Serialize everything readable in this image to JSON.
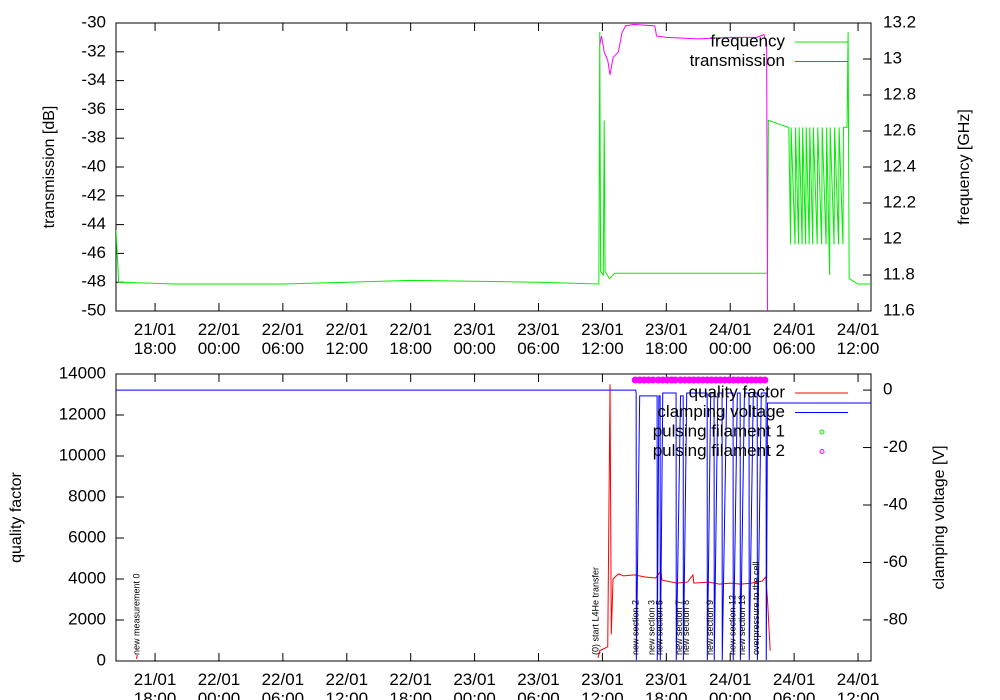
{
  "chart_data": [
    {
      "type": "line",
      "ylabel": "transmission [dB]",
      "y2label": "frequency [GHz]",
      "xlim": [
        "21/01 14:20",
        "24/01 13:13"
      ],
      "xticks": [
        "21/01 18:00",
        "22/01 00:00",
        "22/01 06:00",
        "22/01 12:00",
        "22/01 18:00",
        "23/01 00:00",
        "23/01 06:00",
        "23/01 12:00",
        "23/01 18:00",
        "24/01 00:00",
        "24/01 06:00",
        "24/01 12:00"
      ],
      "ylim": [
        -50,
        -30
      ],
      "yticks": [
        -50,
        -48,
        -46,
        -44,
        -42,
        -40,
        -38,
        -36,
        -34,
        -32,
        -30
      ],
      "y2lim": [
        11.6,
        13.2
      ],
      "y2ticks": [
        11.6,
        11.8,
        12,
        12.2,
        12.4,
        12.6,
        12.8,
        13,
        13.2
      ],
      "legend": "top-right",
      "series": [
        {
          "name": "frequency",
          "color": "#00ee00",
          "axis": "y2",
          "x": [
            "21/01 14:20",
            "21/01 14:35",
            "21/01 20:00",
            "22/01 06:00",
            "22/01 12:00",
            "22/01 18:00",
            "23/01 06:00",
            "23/01 11:40",
            "23/01 11:45",
            "23/01 11:50",
            "23/01 12:05",
            "23/01 12:10",
            "23/01 12:15",
            "23/01 12:40",
            "23/01 13:10",
            "24/01 03:30",
            "24/01 03:35",
            "24/01 04:30",
            "24/01 05:30",
            "24/01 05:40",
            "24/01 05:43",
            "24/01 06:05",
            "24/01 06:08",
            "24/01 06:25",
            "24/01 06:28",
            "24/01 06:45",
            "24/01 06:48",
            "24/01 07:05",
            "24/01 07:08",
            "24/01 07:25",
            "24/01 07:28",
            "24/01 07:45",
            "24/01 07:48",
            "24/01 08:10",
            "24/01 08:13",
            "24/01 08:35",
            "24/01 08:38",
            "24/01 09:00",
            "24/01 09:03",
            "24/01 09:20",
            "24/01 09:23",
            "24/01 09:45",
            "24/01 09:48",
            "24/01 10:10",
            "24/01 10:13",
            "24/01 10:35",
            "24/01 10:38",
            "24/01 10:58",
            "24/01 11:04",
            "24/01 11:10",
            "24/01 12:00",
            "24/01 13:13"
          ],
          "values": [
            12.05,
            11.76,
            11.75,
            11.75,
            11.76,
            11.77,
            11.76,
            11.75,
            13.15,
            11.82,
            11.8,
            12.66,
            11.82,
            11.78,
            11.81,
            11.81,
            12.66,
            12.64,
            12.62,
            11.97,
            12.62,
            11.97,
            12.62,
            11.97,
            12.62,
            11.97,
            12.62,
            11.97,
            12.62,
            11.97,
            12.62,
            11.97,
            12.62,
            11.97,
            12.62,
            11.97,
            12.62,
            11.97,
            12.62,
            11.8,
            12.62,
            11.97,
            12.62,
            11.97,
            12.62,
            11.97,
            12.62,
            12.62,
            13.15,
            11.78,
            11.75,
            11.75
          ]
        },
        {
          "name": "transmission",
          "color": "#ff00ff",
          "axis": "y",
          "x": [
            "23/01 11:45",
            "23/01 11:55",
            "23/01 12:10",
            "23/01 12:30",
            "23/01 12:43",
            "23/01 13:00",
            "23/01 13:30",
            "23/01 13:50",
            "23/01 14:10",
            "23/01 15:00",
            "23/01 16:55",
            "23/01 17:05",
            "23/01 18:00",
            "23/01 21:00",
            "24/01 00:00",
            "24/01 02:30",
            "24/01 03:10",
            "24/01 03:25",
            "24/01 03:30"
          ],
          "values": [
            -31.5,
            -30.9,
            -32,
            -32.6,
            -33.6,
            -32.4,
            -32,
            -30.7,
            -30.2,
            -30.1,
            -30.2,
            -30.9,
            -31,
            -31.1,
            -31,
            -31,
            -30.8,
            -31.4,
            -50
          ]
        }
      ]
    },
    {
      "type": "line",
      "ylabel": "quality factor",
      "y2label": "clamping voltage [V]",
      "xlim": [
        "21/01 14:20",
        "24/01 13:13"
      ],
      "xticks": [
        "21/01 18:00",
        "22/01 00:00",
        "22/01 06:00",
        "22/01 12:00",
        "22/01 18:00",
        "23/01 00:00",
        "23/01 06:00",
        "23/01 12:00",
        "23/01 18:00",
        "24/01 00:00",
        "24/01 06:00",
        "24/01 12:00"
      ],
      "ylim": [
        0,
        14000
      ],
      "yticks": [
        0,
        2000,
        4000,
        6000,
        8000,
        10000,
        12000,
        14000
      ],
      "y2lim": [
        -94.3,
        5.6
      ],
      "y2ticks": [
        -80,
        -60,
        -40,
        -20,
        0
      ],
      "legend": "top-right",
      "series": [
        {
          "name": "quality factor",
          "color": "#ff0000",
          "axis": "y",
          "x": [
            "21/01 16:15",
            "21/01 16:20",
            "21/01 16:25",
            "23/01 11:35",
            "23/01 11:45",
            "23/01 12:30",
            "23/01 12:43",
            "23/01 12:50",
            "23/01 13:00",
            "23/01 13:30",
            "23/01 14:00",
            "23/01 15:00",
            "23/01 16:00",
            "23/01 17:00",
            "23/01 17:30",
            "23/01 17:35",
            "23/01 18:00",
            "23/01 19:00",
            "23/01 20:00",
            "23/01 20:30",
            "23/01 20:35",
            "23/01 22:00",
            "23/01 23:00",
            "24/01 00:00",
            "24/01 01:00",
            "24/01 02:00",
            "24/01 03:00",
            "24/01 03:20",
            "24/01 03:30",
            "24/01 03:45"
          ],
          "values": [
            100,
            300,
            null,
            150,
            500,
            700,
            13500,
            1300,
            4000,
            4250,
            4150,
            4200,
            4100,
            4050,
            4400,
            3950,
            3900,
            3800,
            3850,
            4200,
            3800,
            3850,
            3750,
            3800,
            3750,
            3800,
            3900,
            4100,
            3000,
            500
          ]
        },
        {
          "name": "clamping voltage",
          "color": "#0000ff",
          "axis": "y2",
          "x": [
            "21/01 14:20",
            "23/01 15:08",
            "23/01 15:10",
            "23/01 15:11",
            "23/01 15:30",
            "23/01 17:08",
            "23/01 17:09",
            "23/01 17:18",
            "23/01 17:25",
            "23/01 17:26",
            "23/01 17:40",
            "23/01 18:55",
            "23/01 18:56",
            "23/01 19:20",
            "23/01 19:35",
            "23/01 19:36",
            "23/01 19:55",
            "23/01 21:50",
            "23/01 21:51",
            "23/01 22:10",
            "23/01 22:29",
            "23/01 22:30",
            "23/01 22:50",
            "23/01 23:14",
            "23/01 23:15",
            "23/01 23:40",
            "24/01 00:16",
            "24/01 00:17",
            "24/01 00:40",
            "24/01 00:56",
            "24/01 00:57",
            "24/01 01:20",
            "24/01 01:46",
            "24/01 01:47",
            "24/01 02:10",
            "24/01 02:32",
            "24/01 02:33",
            "24/01 02:55",
            "24/01 03:22",
            "24/01 03:23",
            "24/01 03:30",
            "24/01 13:13"
          ],
          "values": [
            0,
            0,
            -1,
            -94,
            -2,
            -2,
            -94,
            -2,
            -2,
            -94,
            -1,
            -1,
            -94,
            -2,
            -2,
            -94,
            -1,
            -1,
            -94,
            -1,
            -1,
            -94,
            -1,
            -1,
            -94,
            -1,
            -1,
            -94,
            -1,
            -1,
            -94,
            -1,
            -1,
            -94,
            -1,
            -1,
            -94,
            -1,
            -1,
            -94,
            -4.5,
            -4.5
          ]
        },
        {
          "name": "pulsing filament 1",
          "color": "#00ee00",
          "axis": "y2",
          "type": "scatter",
          "x": [],
          "values": []
        },
        {
          "name": "pulsing filament 2",
          "color": "#ff00ff",
          "axis": "y2",
          "type": "scatter",
          "x": [
            "23/01 15:05",
            "23/01 15:30",
            "23/01 15:55",
            "23/01 16:20",
            "23/01 16:45",
            "23/01 17:15",
            "23/01 17:40",
            "23/01 18:05",
            "23/01 18:30",
            "23/01 18:50",
            "23/01 19:20",
            "23/01 19:45",
            "23/01 20:10",
            "23/01 20:35",
            "23/01 21:00",
            "23/01 21:25",
            "23/01 21:50",
            "23/01 22:15",
            "23/01 22:40",
            "23/01 23:05",
            "23/01 23:30",
            "23/01 23:55",
            "24/01 00:20",
            "24/01 00:45",
            "24/01 01:10",
            "24/01 01:35",
            "24/01 02:00",
            "24/01 02:25",
            "24/01 02:50",
            "24/01 03:15"
          ],
          "values": [
            3.5,
            3.5,
            3.5,
            3.5,
            3.5,
            3.5,
            3.5,
            3.5,
            3.5,
            3.5,
            3.5,
            3.5,
            3.5,
            3.5,
            3.5,
            3.5,
            3.5,
            3.5,
            3.5,
            3.5,
            3.5,
            3.5,
            3.5,
            3.5,
            3.5,
            3.5,
            3.5,
            3.5,
            3.5,
            3.5
          ]
        }
      ],
      "annotations": [
        {
          "x": "21/01 16:20",
          "text": "new measurement 0"
        },
        {
          "x": "23/01 11:25",
          "text": "(0) start L4He transfer"
        },
        {
          "x": "23/01 15:10",
          "text": "new section 2"
        },
        {
          "x": "23/01 16:40",
          "text": "new section 3"
        },
        {
          "x": "23/01 17:25",
          "text": "new section 5"
        },
        {
          "x": "23/01 19:15",
          "text": "new section 7"
        },
        {
          "x": "23/01 19:55",
          "text": "new section 8"
        },
        {
          "x": "23/01 22:10",
          "text": "new section 9"
        },
        {
          "x": "24/01 00:15",
          "text": "new section 12"
        },
        {
          "x": "24/01 01:10",
          "text": "new section 13"
        },
        {
          "x": "24/01 02:30",
          "text": "overpressure to the cell"
        }
      ]
    }
  ]
}
